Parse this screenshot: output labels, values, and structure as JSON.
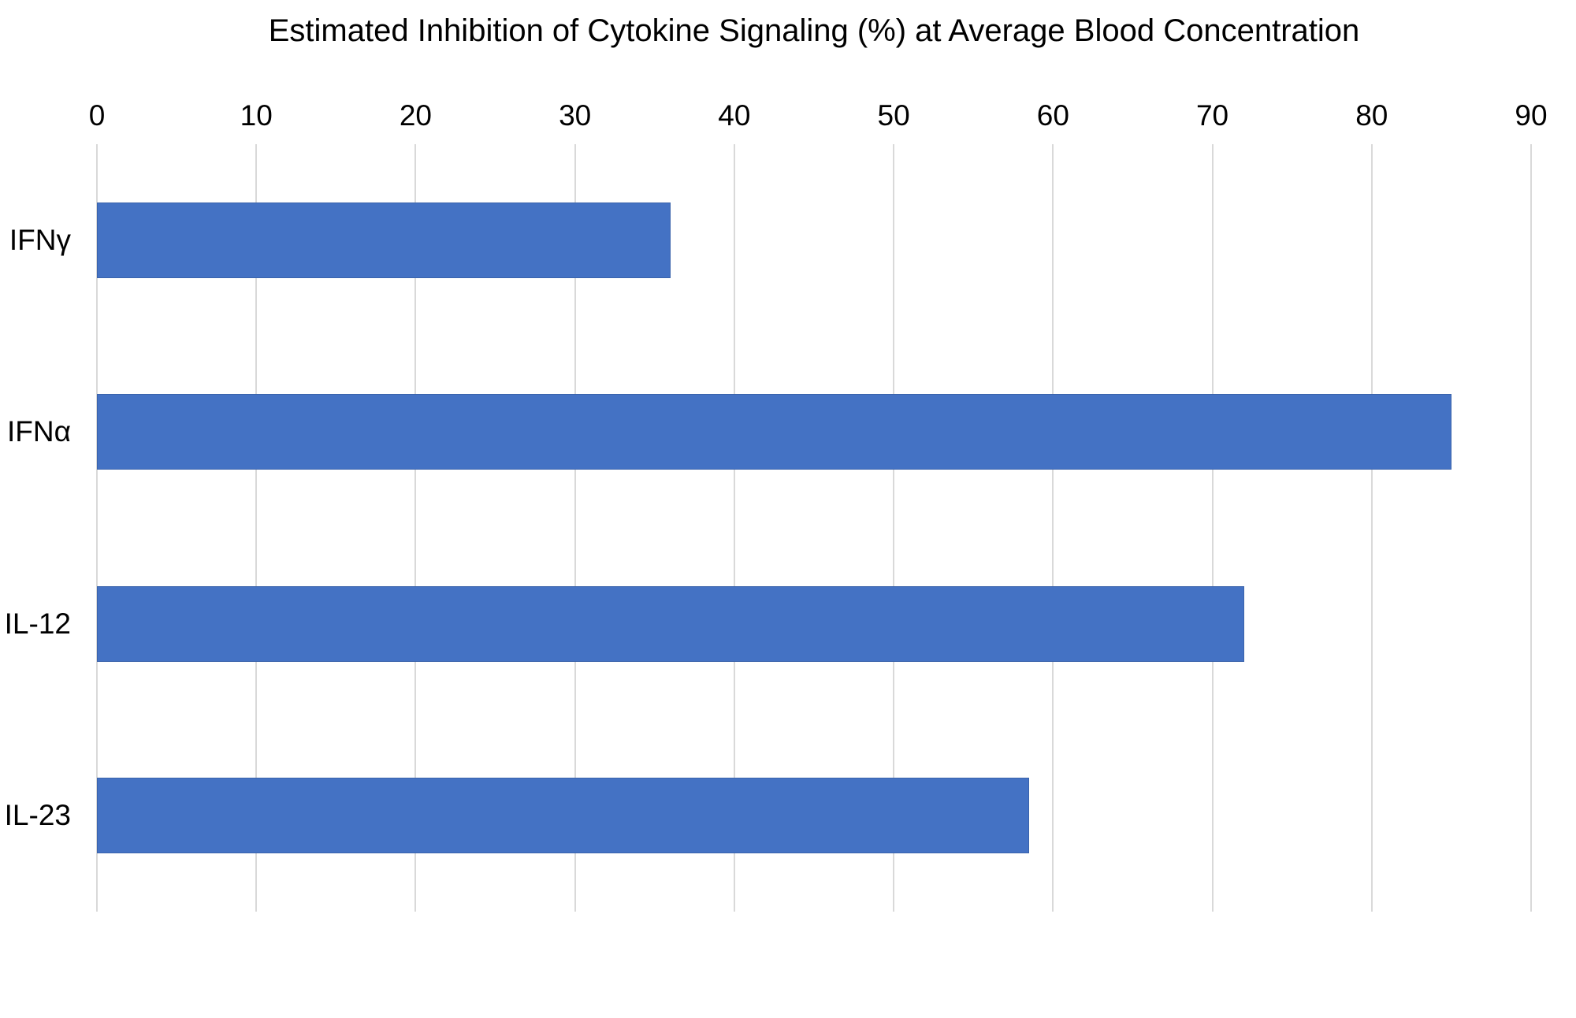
{
  "chart_data": {
    "type": "bar",
    "orientation": "horizontal",
    "title": "Estimated Inhibition of Cytokine Signaling (%) at Average Blood Concentration",
    "categories": [
      "IFNγ",
      "IFNα",
      "IL-12",
      "IL-23"
    ],
    "values": [
      36,
      85,
      72,
      58.5
    ],
    "xlabel": "",
    "ylabel": "",
    "xlim": [
      0,
      90
    ],
    "x_ticks": [
      0,
      10,
      20,
      30,
      40,
      50,
      60,
      70,
      80,
      90
    ],
    "x_ticks_position": "top",
    "grid": "vertical",
    "legend": "none",
    "data_labels": "none",
    "bar_color": "#4472C4",
    "gridline_color": "#D9D9D9",
    "text_color": "#000000",
    "background_color": "#FFFFFF"
  }
}
